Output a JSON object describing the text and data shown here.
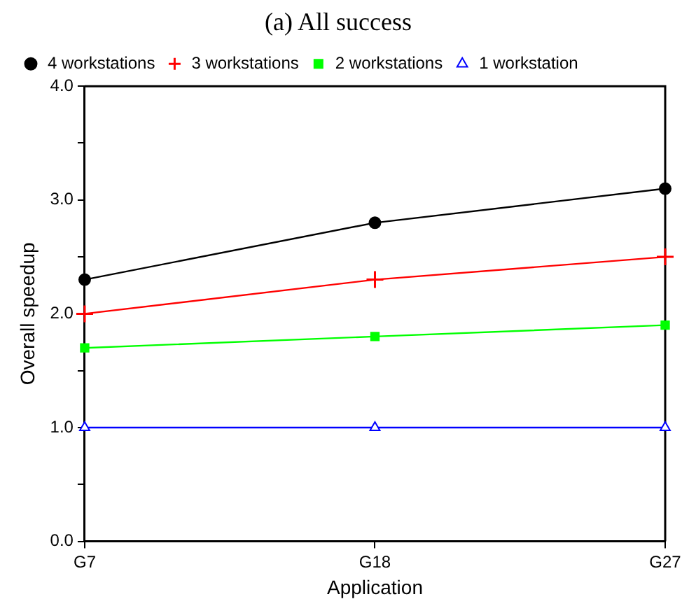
{
  "chart_data": {
    "type": "line",
    "title": "(a) All success",
    "xlabel": "Application",
    "ylabel": "Overall speedup",
    "categories": [
      "G7",
      "G18",
      "G27"
    ],
    "series": [
      {
        "name": "4 workstations",
        "color": "#000000",
        "marker": "circle",
        "values": [
          2.3,
          2.8,
          3.1
        ]
      },
      {
        "name": "3 workstations",
        "color": "#ff0000",
        "marker": "cross",
        "values": [
          2.0,
          2.3,
          2.5
        ]
      },
      {
        "name": "2 workstations",
        "color": "#00ff00",
        "marker": "square",
        "values": [
          1.7,
          1.8,
          1.9
        ]
      },
      {
        "name": "1 workstation",
        "color": "#0000ff",
        "marker": "triangle",
        "values": [
          1.0,
          1.0,
          1.0
        ]
      }
    ],
    "ylim": [
      0,
      4
    ],
    "yticks": [
      {
        "value": 0,
        "label": "0.0"
      },
      {
        "value": 0.5,
        "label": null
      },
      {
        "value": 1,
        "label": "1.0"
      },
      {
        "value": 1.5,
        "label": null
      },
      {
        "value": 2,
        "label": "2.0"
      },
      {
        "value": 2.5,
        "label": null
      },
      {
        "value": 3,
        "label": "3.0"
      },
      {
        "value": 3.5,
        "label": null
      },
      {
        "value": 4,
        "label": "4.0"
      }
    ],
    "grid": false,
    "legend": "top left",
    "line_style": "solid"
  }
}
